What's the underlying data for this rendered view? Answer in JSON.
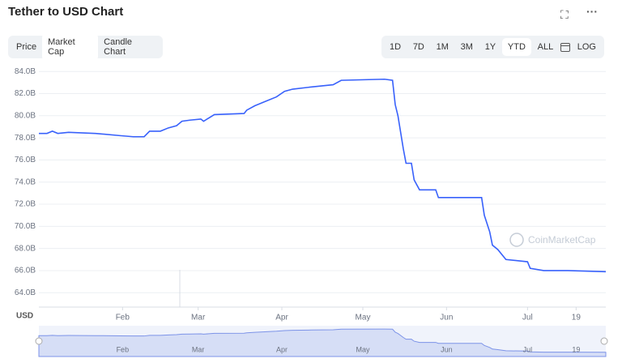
{
  "header": {
    "title": "Tether to USD Chart"
  },
  "tabs": [
    "Price",
    "Market Cap",
    "Candle Chart"
  ],
  "ranges": [
    "1D",
    "7D",
    "1M",
    "3M",
    "1Y",
    "YTD",
    "ALL"
  ],
  "log_label": "LOG",
  "chart_data": {
    "type": "line",
    "currency": "USD",
    "watermark": "CoinMarketCap",
    "color": "#3861fb",
    "grid": true,
    "x": [
      1,
      4,
      6,
      8,
      12,
      22,
      31,
      36,
      40,
      42,
      46,
      49,
      52,
      54,
      57,
      61,
      62,
      64,
      66,
      77,
      78,
      81,
      84,
      89,
      92,
      95,
      102,
      110,
      113,
      129,
      132,
      133,
      134,
      135,
      136,
      137,
      139,
      140,
      142,
      148,
      149,
      165,
      166,
      168,
      169,
      171,
      174,
      182,
      183,
      188,
      197,
      211
    ],
    "values": [
      78.4,
      78.4,
      78.6,
      78.4,
      78.5,
      78.4,
      78.2,
      78.1,
      78.1,
      78.6,
      78.6,
      78.9,
      79.1,
      79.5,
      79.6,
      79.7,
      79.5,
      79.8,
      80.1,
      80.2,
      80.5,
      80.9,
      81.2,
      81.7,
      82.2,
      82.4,
      82.6,
      82.8,
      83.2,
      83.3,
      83.2,
      81.0,
      80.0,
      78.5,
      77.0,
      75.7,
      75.7,
      74.2,
      73.3,
      73.3,
      72.6,
      72.6,
      71.0,
      69.5,
      68.3,
      67.9,
      67.0,
      66.8,
      66.2,
      66.0,
      66.0,
      65.9
    ],
    "xlim": [
      1,
      211
    ],
    "ylim": [
      62.7,
      84.6
    ],
    "xticks": [
      {
        "value": 32,
        "label": "Feb"
      },
      {
        "value": 60,
        "label": "Mar"
      },
      {
        "value": 91,
        "label": "Apr"
      },
      {
        "value": 121,
        "label": "May"
      },
      {
        "value": 152,
        "label": "Jun"
      },
      {
        "value": 182,
        "label": "Jul"
      },
      {
        "value": 200,
        "label": "19"
      }
    ],
    "yticks": [
      {
        "value": 64,
        "label": "64.0B"
      },
      {
        "value": 66,
        "label": "66.0B"
      },
      {
        "value": 68,
        "label": "68.0B"
      },
      {
        "value": 70,
        "label": "70.0B"
      },
      {
        "value": 72,
        "label": "72.0B"
      },
      {
        "value": 74,
        "label": "74.0B"
      },
      {
        "value": 76,
        "label": "76.0B"
      },
      {
        "value": 78,
        "label": "78.0B"
      },
      {
        "value": 80,
        "label": "80.0B"
      },
      {
        "value": 82,
        "label": "82.0B"
      },
      {
        "value": 84,
        "label": "84.0B"
      }
    ]
  }
}
